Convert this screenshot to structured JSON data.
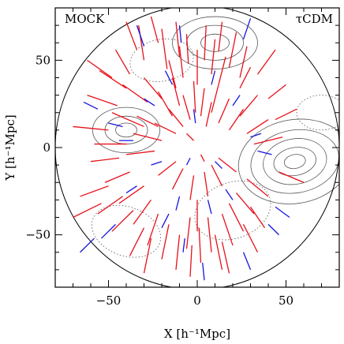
{
  "chart_data": {
    "type": "scatter",
    "title": "",
    "xlabel": "X [h⁻¹Mpc]",
    "ylabel": "Y [h⁻¹Mpc]",
    "xlim": [
      -80,
      80
    ],
    "ylim": [
      -80,
      80
    ],
    "xticks": [
      -50,
      0,
      50
    ],
    "yticks": [
      -50,
      0,
      50
    ],
    "xtick_labels": [
      "−50",
      "0",
      "50"
    ],
    "ytick_labels": [
      "−50",
      "0",
      "50"
    ],
    "annotations": {
      "left": "MOCK",
      "right": "τCDM"
    },
    "survey_radius": 80,
    "grid": false,
    "colors": {
      "outflow": "#e8101a",
      "inflow": "#1515e0",
      "contour": "#555555",
      "frame": "#000000"
    },
    "series": [
      {
        "color": "#e8101a",
        "segments": [
          [
            -40,
            72,
            -34,
            56
          ],
          [
            -33,
            70,
            -30,
            50
          ],
          [
            -26,
            75,
            -22,
            60
          ],
          [
            -20,
            68,
            -17,
            45
          ],
          [
            -12,
            72,
            -10,
            52
          ],
          [
            -6,
            65,
            -5,
            48
          ],
          [
            5,
            70,
            4,
            50
          ],
          [
            10,
            62,
            8,
            42
          ],
          [
            14,
            72,
            12,
            55
          ],
          [
            22,
            66,
            18,
            46
          ],
          [
            28,
            58,
            24,
            40
          ],
          [
            -55,
            44,
            -40,
            34
          ],
          [
            -62,
            30,
            -45,
            24
          ],
          [
            -70,
            12,
            -50,
            10
          ],
          [
            -58,
            2,
            -40,
            2
          ],
          [
            -48,
            20,
            -30,
            12
          ],
          [
            -42,
            36,
            -28,
            26
          ],
          [
            -30,
            40,
            -20,
            28
          ],
          [
            -22,
            32,
            -14,
            18
          ],
          [
            -16,
            22,
            -8,
            12
          ],
          [
            -24,
            14,
            -12,
            8
          ],
          [
            -36,
            8,
            -20,
            4
          ],
          [
            -14,
            40,
            -10,
            24
          ],
          [
            -8,
            30,
            -4,
            16
          ],
          [
            -2,
            38,
            -1,
            20
          ],
          [
            4,
            34,
            2,
            18
          ],
          [
            8,
            26,
            5,
            12
          ],
          [
            12,
            36,
            8,
            20
          ],
          [
            18,
            28,
            12,
            14
          ],
          [
            26,
            22,
            18,
            10
          ],
          [
            34,
            30,
            24,
            18
          ],
          [
            40,
            16,
            28,
            8
          ],
          [
            48,
            6,
            32,
            2
          ],
          [
            -60,
            -8,
            -44,
            -6
          ],
          [
            -52,
            -20,
            -38,
            -14
          ],
          [
            -44,
            -32,
            -30,
            -22
          ],
          [
            -66,
            -28,
            -50,
            -22
          ],
          [
            -36,
            -44,
            -26,
            -30
          ],
          [
            -28,
            -56,
            -22,
            -38
          ],
          [
            -20,
            -64,
            -16,
            -44
          ],
          [
            -12,
            -70,
            -10,
            -50
          ],
          [
            -6,
            -58,
            -4,
            -40
          ],
          [
            2,
            -66,
            1,
            -46
          ],
          [
            8,
            -60,
            6,
            -40
          ],
          [
            14,
            -70,
            10,
            -50
          ],
          [
            20,
            -56,
            14,
            -38
          ],
          [
            26,
            -48,
            18,
            -32
          ],
          [
            32,
            -38,
            22,
            -26
          ],
          [
            40,
            -28,
            28,
            -18
          ],
          [
            -48,
            -48,
            -36,
            -36
          ],
          [
            -56,
            -38,
            -42,
            -28
          ],
          [
            -38,
            -62,
            -30,
            -46
          ],
          [
            -30,
            -72,
            -26,
            -52
          ],
          [
            18,
            -72,
            14,
            -54
          ],
          [
            34,
            -60,
            26,
            -44
          ],
          [
            -4,
            -30,
            -2,
            -16
          ],
          [
            6,
            -28,
            4,
            -14
          ],
          [
            -14,
            -24,
            -8,
            -12
          ],
          [
            14,
            -22,
            8,
            -10
          ],
          [
            -22,
            -16,
            -12,
            -8
          ],
          [
            22,
            -14,
            12,
            -6
          ],
          [
            -40,
            -4,
            -24,
            -2
          ],
          [
            50,
            36,
            40,
            28
          ],
          [
            56,
            22,
            44,
            16
          ],
          [
            -70,
            -40,
            -54,
            -32
          ],
          [
            -62,
            50,
            -48,
            40
          ],
          [
            44,
            56,
            34,
            42
          ],
          [
            60,
            -20,
            46,
            -14
          ],
          [
            -10,
            58,
            -8,
            40
          ],
          [
            0,
            56,
            0,
            36
          ],
          [
            -46,
            56,
            -38,
            42
          ],
          [
            30,
            46,
            24,
            34
          ],
          [
            -34,
            18,
            -22,
            12
          ],
          [
            -6,
            8,
            -2,
            4
          ],
          [
            4,
            -8,
            2,
            -4
          ],
          [
            0,
            -48,
            0,
            -30
          ],
          [
            -16,
            50,
            -12,
            34
          ],
          [
            16,
            52,
            12,
            36
          ],
          [
            38,
            -46,
            30,
            -34
          ],
          [
            -4,
            -74,
            -3,
            -56
          ]
        ]
      },
      {
        "color": "#1515e0",
        "segments": [
          [
            -34,
            70,
            -30,
            58
          ],
          [
            30,
            74,
            26,
            62
          ],
          [
            -64,
            26,
            -56,
            22
          ],
          [
            -50,
            14,
            -42,
            12
          ],
          [
            -18,
            44,
            -14,
            36
          ],
          [
            10,
            44,
            8,
            36
          ],
          [
            24,
            30,
            20,
            24
          ],
          [
            -26,
            -10,
            -20,
            -8
          ],
          [
            -12,
            -36,
            -10,
            -28
          ],
          [
            8,
            -38,
            6,
            -30
          ],
          [
            20,
            -30,
            16,
            -24
          ],
          [
            -40,
            -26,
            -34,
            -22
          ],
          [
            -54,
            -52,
            -46,
            -44
          ],
          [
            -8,
            -60,
            -7,
            -52
          ],
          [
            4,
            -76,
            3,
            -66
          ],
          [
            30,
            -70,
            26,
            -60
          ],
          [
            46,
            -50,
            40,
            -44
          ],
          [
            -66,
            -60,
            -58,
            -52
          ],
          [
            -2,
            22,
            -1,
            14
          ],
          [
            -30,
            28,
            -24,
            24
          ],
          [
            36,
            8,
            30,
            6
          ],
          [
            52,
            -40,
            44,
            -34
          ],
          [
            -20,
            -46,
            -16,
            -38
          ],
          [
            14,
            -12,
            10,
            -8
          ],
          [
            -6,
            -10,
            -4,
            -6
          ],
          [
            -44,
            4,
            -36,
            4
          ],
          [
            -10,
            70,
            -9,
            60
          ],
          [
            42,
            -4,
            34,
            -2
          ]
        ]
      }
    ]
  }
}
